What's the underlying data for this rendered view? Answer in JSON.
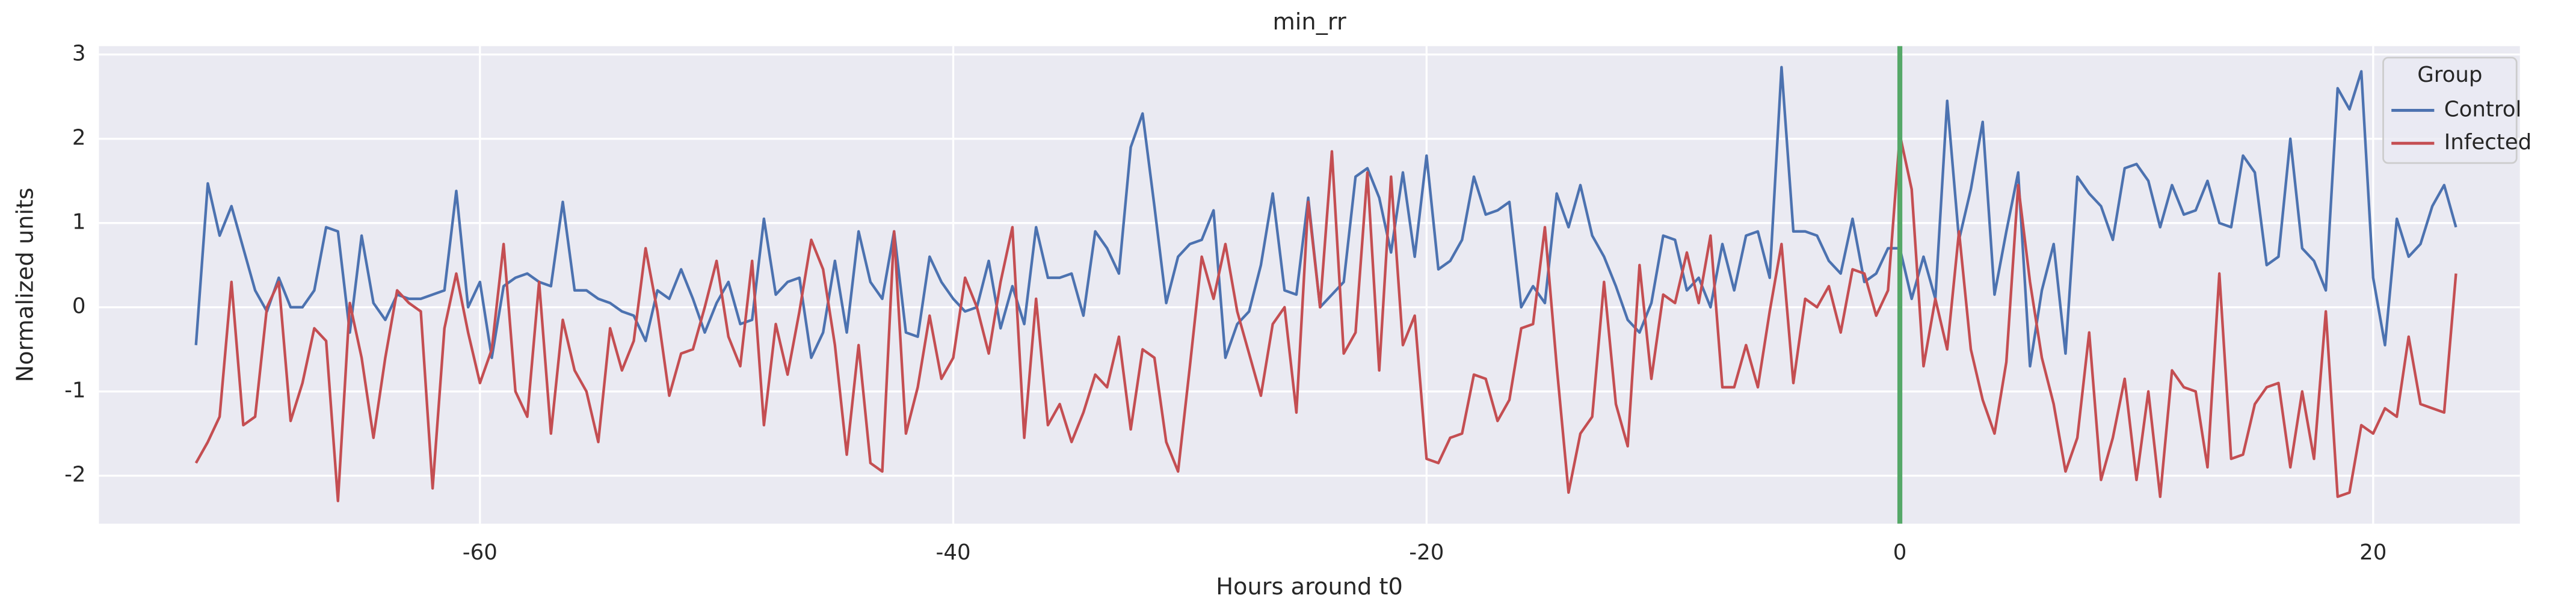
{
  "chart_data": {
    "type": "line",
    "title": "min_rr",
    "xlabel": "Hours around t0",
    "ylabel": "Normalized units",
    "x": [
      -72,
      -71.5,
      -71,
      -70.5,
      -70,
      -69.5,
      -69,
      -68.5,
      -68,
      -67.5,
      -67,
      -66.5,
      -66,
      -65.5,
      -65,
      -64.5,
      -64,
      -63.5,
      -63,
      -62.5,
      -62,
      -61.5,
      -61,
      -60.5,
      -60,
      -59.5,
      -59,
      -58.5,
      -58,
      -57.5,
      -57,
      -56.5,
      -56,
      -55.5,
      -55,
      -54.5,
      -54,
      -53.5,
      -53,
      -52.5,
      -52,
      -51.5,
      -51,
      -50.5,
      -50,
      -49.5,
      -49,
      -48.5,
      -48,
      -47.5,
      -47,
      -46.5,
      -46,
      -45.5,
      -45,
      -44.5,
      -44,
      -43.5,
      -43,
      -42.5,
      -42,
      -41.5,
      -41,
      -40.5,
      -40,
      -39.5,
      -39,
      -38.5,
      -38,
      -37.5,
      -37,
      -36.5,
      -36,
      -35.5,
      -35,
      -34.5,
      -34,
      -33.5,
      -33,
      -32.5,
      -32,
      -31.5,
      -31,
      -30.5,
      -30,
      -29.5,
      -29,
      -28.5,
      -28,
      -27.5,
      -27,
      -26.5,
      -26,
      -25.5,
      -25,
      -24.5,
      -24,
      -23.5,
      -23,
      -22.5,
      -22,
      -21.5,
      -21,
      -20.5,
      -20,
      -19.5,
      -19,
      -18.5,
      -18,
      -17.5,
      -17,
      -16.5,
      -16,
      -15.5,
      -15,
      -14.5,
      -14,
      -13.5,
      -13,
      -12.5,
      -12,
      -11.5,
      -11,
      -10.5,
      -10,
      -9.5,
      -9,
      -8.5,
      -8,
      -7.5,
      -7,
      -6.5,
      -6,
      -5.5,
      -5,
      -4.5,
      -4,
      -3.5,
      -3,
      -2.5,
      -2,
      -1.5,
      -1,
      -0.5,
      0,
      0.5,
      1,
      1.5,
      2,
      2.5,
      3,
      3.5,
      4,
      4.5,
      5,
      5.5,
      6,
      6.5,
      7,
      7.5,
      8,
      8.5,
      9,
      9.5,
      10,
      10.5,
      11,
      11.5,
      12,
      12.5,
      13,
      13.5,
      14,
      14.5,
      15,
      15.5,
      16,
      16.5,
      17,
      17.5,
      18,
      18.5,
      19,
      19.5,
      20,
      20.5,
      21,
      21.5,
      22,
      22.5,
      23,
      23.5
    ],
    "series": [
      {
        "name": "Control",
        "color": "#4c72b0",
        "values": [
          -0.45,
          1.47,
          0.85,
          1.2,
          0.7,
          0.2,
          -0.05,
          0.35,
          0,
          0,
          0.2,
          0.95,
          0.9,
          -0.3,
          0.85,
          0.05,
          -0.15,
          0.15,
          0.1,
          0.1,
          0.15,
          0.2,
          1.38,
          0,
          0.3,
          -0.6,
          0.25,
          0.35,
          0.4,
          0.3,
          0.25,
          1.25,
          0.2,
          0.2,
          0.1,
          0.05,
          -0.05,
          -0.1,
          -0.4,
          0.2,
          0.1,
          0.45,
          0.1,
          -0.3,
          0.05,
          0.3,
          -0.2,
          -0.15,
          1.05,
          0.15,
          0.3,
          0.35,
          -0.6,
          -0.3,
          0.55,
          -0.3,
          0.9,
          0.3,
          0.1,
          0.9,
          -0.3,
          -0.35,
          0.6,
          0.3,
          0.1,
          -0.05,
          0,
          0.55,
          -0.25,
          0.25,
          -0.2,
          0.95,
          0.35,
          0.35,
          0.4,
          -0.1,
          0.9,
          0.7,
          0.4,
          1.9,
          2.3,
          1.2,
          0.05,
          0.6,
          0.75,
          0.8,
          1.15,
          -0.6,
          -0.2,
          -0.05,
          0.5,
          1.35,
          0.2,
          0.15,
          1.3,
          0,
          0.15,
          0.3,
          1.55,
          1.65,
          1.3,
          0.65,
          1.6,
          0.6,
          1.8,
          0.45,
          0.55,
          0.8,
          1.55,
          1.1,
          1.15,
          1.25,
          0,
          0.25,
          0.05,
          1.35,
          0.95,
          1.45,
          0.85,
          0.6,
          0.25,
          -0.15,
          -0.3,
          0.05,
          0.85,
          0.8,
          0.2,
          0.35,
          0,
          0.75,
          0.2,
          0.85,
          0.9,
          0.35,
          2.85,
          0.9,
          0.9,
          0.85,
          0.55,
          0.4,
          1.05,
          0.3,
          0.4,
          0.7,
          0.7,
          0.1,
          0.6,
          0.1,
          2.45,
          0.8,
          1.4,
          2.2,
          0.15,
          0.9,
          1.6,
          -0.7,
          0.2,
          0.75,
          -0.55,
          1.55,
          1.35,
          1.2,
          0.8,
          1.65,
          1.7,
          1.5,
          0.95,
          1.45,
          1.1,
          1.15,
          1.5,
          1,
          0.95,
          1.8,
          1.6,
          0.5,
          0.6,
          2,
          0.7,
          0.55,
          0.2,
          2.6,
          2.35,
          2.8,
          0.35,
          -0.45,
          1.05,
          0.6,
          0.75,
          1.2,
          1.45,
          0.95
        ]
      },
      {
        "name": "Infected",
        "color": "#c44e52",
        "values": [
          -1.85,
          -1.6,
          -1.3,
          0.3,
          -1.4,
          -1.3,
          0,
          0.3,
          -1.35,
          -0.9,
          -0.25,
          -0.4,
          -2.3,
          0.05,
          -0.6,
          -1.55,
          -0.6,
          0.2,
          0.05,
          -0.05,
          -2.15,
          -0.25,
          0.4,
          -0.3,
          -0.9,
          -0.5,
          0.75,
          -1,
          -1.3,
          0.3,
          -1.5,
          -0.15,
          -0.75,
          -1,
          -1.6,
          -0.25,
          -0.75,
          -0.4,
          0.7,
          -0.05,
          -1.05,
          -0.55,
          -0.5,
          0,
          0.55,
          -0.35,
          -0.7,
          0.55,
          -1.4,
          -0.2,
          -0.8,
          -0.05,
          0.8,
          0.45,
          -0.45,
          -1.75,
          -0.45,
          -1.85,
          -1.95,
          0.9,
          -1.5,
          -0.95,
          -0.1,
          -0.85,
          -0.6,
          0.35,
          0,
          -0.55,
          0.3,
          0.95,
          -1.55,
          0.1,
          -1.4,
          -1.15,
          -1.6,
          -1.25,
          -0.8,
          -0.95,
          -0.35,
          -1.45,
          -0.5,
          -0.6,
          -1.6,
          -1.95,
          -0.7,
          0.6,
          0.1,
          0.75,
          -0.05,
          -0.55,
          -1.05,
          -0.2,
          0,
          -1.25,
          1.25,
          0,
          1.85,
          -0.55,
          -0.3,
          1.6,
          -0.75,
          1.55,
          -0.45,
          -0.1,
          -1.8,
          -1.85,
          -1.55,
          -1.5,
          -0.8,
          -0.85,
          -1.35,
          -1.1,
          -0.25,
          -0.2,
          0.95,
          -0.7,
          -2.2,
          -1.5,
          -1.3,
          0.3,
          -1.15,
          -1.65,
          0.5,
          -0.85,
          0.15,
          0.05,
          0.65,
          0.05,
          0.85,
          -0.95,
          -0.95,
          -0.45,
          -0.95,
          -0.05,
          0.75,
          -0.9,
          0.1,
          0,
          0.25,
          -0.3,
          0.45,
          0.4,
          -0.1,
          0.2,
          2.05,
          1.4,
          -0.7,
          0.1,
          -0.5,
          0.9,
          -0.5,
          -1.1,
          -1.5,
          -0.65,
          1.45,
          0.3,
          -0.6,
          -1.15,
          -1.95,
          -1.55,
          -0.3,
          -2.05,
          -1.55,
          -0.85,
          -2.05,
          -1,
          -2.25,
          -0.75,
          -0.95,
          -1,
          -1.9,
          0.4,
          -1.8,
          -1.75,
          -1.15,
          -0.95,
          -0.9,
          -1.9,
          -1,
          -1.8,
          -0.05,
          -2.25,
          -2.2,
          -1.4,
          -1.5,
          -1.2,
          -1.3,
          -0.35,
          -1.15,
          -1.2,
          -1.25,
          0.4
        ]
      }
    ],
    "xlim": [
      -76.1,
      26.2
    ],
    "ylim": [
      -2.57,
      3.1
    ],
    "xticks": [
      -60,
      -40,
      -20,
      0,
      20
    ],
    "yticks": [
      -2,
      -1,
      0,
      1,
      2,
      3
    ],
    "vline": {
      "x": 0,
      "color": "#55a868"
    },
    "grid": true,
    "legend": {
      "title": "Group",
      "position": "upper right"
    }
  }
}
